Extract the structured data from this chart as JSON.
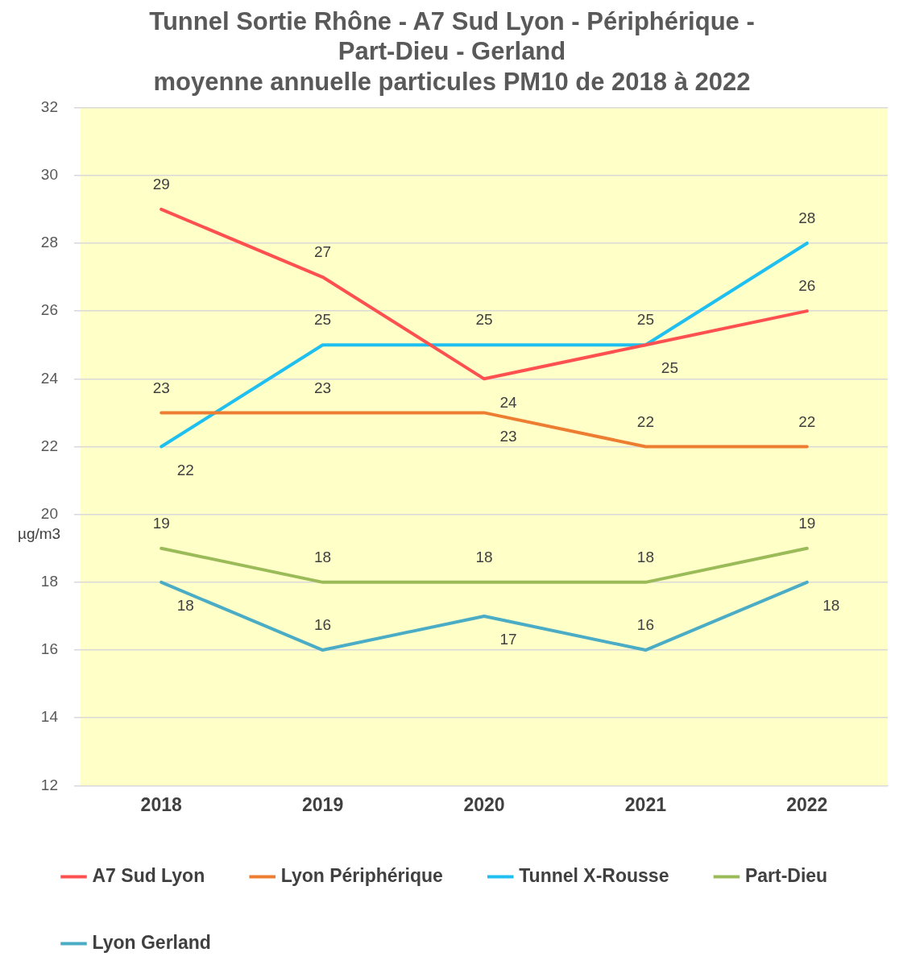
{
  "chart_data": {
    "type": "line",
    "title": [
      "Tunnel Sortie Rhône - A7 Sud Lyon - Périphérique -",
      "Part-Dieu - Gerland",
      "moyenne annuelle particules PM10 de 2018 à 2022"
    ],
    "ylabel": "µg/m3",
    "categories": [
      "2018",
      "2019",
      "2020",
      "2021",
      "2022"
    ],
    "series": [
      {
        "name": "A7 Sud Lyon",
        "color": "#ff5050",
        "values": [
          29,
          27,
          24,
          25,
          26
        ]
      },
      {
        "name": "Lyon Périphérique",
        "color": "#ed7d31",
        "values": [
          23,
          23,
          23,
          22,
          22
        ]
      },
      {
        "name": "Tunnel X-Rousse",
        "color": "#1fbff0",
        "values": [
          22,
          25,
          25,
          25,
          28
        ]
      },
      {
        "name": "Part-Dieu",
        "color": "#9bbb59",
        "values": [
          19,
          18,
          18,
          18,
          19
        ]
      },
      {
        "name": "Lyon Gerland",
        "color": "#4bacc6",
        "values": [
          18,
          16,
          17,
          16,
          18
        ]
      }
    ],
    "ylim": [
      12,
      32
    ],
    "yticks": [
      12,
      14,
      16,
      18,
      20,
      22,
      24,
      26,
      28,
      30,
      32
    ],
    "grid": "y",
    "legend": "bottom",
    "marker": "none",
    "line_style": "solid",
    "data_labels": true
  }
}
